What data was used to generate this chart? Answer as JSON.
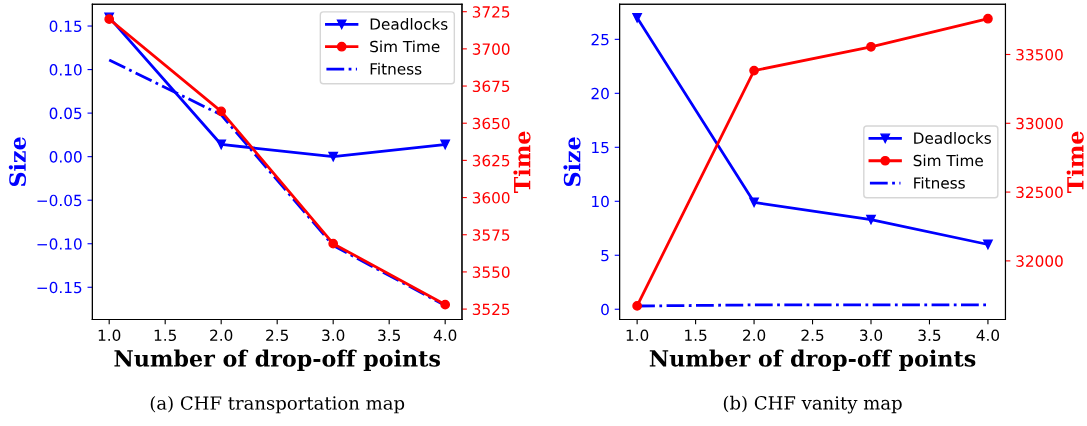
{
  "chart_data": [
    {
      "type": "line",
      "xlabel": "Number of drop-off points",
      "ylabel": "Size",
      "y2label": "Time",
      "x": [
        1,
        2,
        3,
        4
      ],
      "series": [
        {
          "name": "Deadlocks",
          "color": "#0000ff",
          "values": [
            0.16,
            0.014,
            0.0,
            0.014
          ],
          "marker": "triangle",
          "line_style": "solid"
        },
        {
          "name": "Sim Time",
          "color": "#ff0000",
          "values": [
            3720,
            3658,
            3569,
            3528
          ],
          "axis": "y2",
          "marker": "circle",
          "line_style": "solid"
        },
        {
          "name": "Fitness",
          "color": "#0000ff",
          "values": [
            0.111,
            0.048,
            -0.102,
            -0.171
          ],
          "marker": "none",
          "line_style": "dashdot"
        }
      ],
      "xlim": [
        0.85,
        4.15
      ],
      "xticks": [
        {
          "value": 1,
          "label": "1.0"
        },
        {
          "value": 1.5,
          "label": "1.5"
        },
        {
          "value": 2,
          "label": "2.0"
        },
        {
          "value": 2.5,
          "label": "2.5"
        },
        {
          "value": 3,
          "label": "3.0"
        },
        {
          "value": 3.5,
          "label": "3.5"
        },
        {
          "value": 4,
          "label": "4.0"
        }
      ],
      "ylim": [
        -0.187,
        0.175
      ],
      "yticks": [
        {
          "value": -0.15,
          "label": "−0.15"
        },
        {
          "value": -0.1,
          "label": "−0.10"
        },
        {
          "value": -0.05,
          "label": "−0.05"
        },
        {
          "value": 0,
          "label": "0.00"
        },
        {
          "value": 0.05,
          "label": "0.05"
        },
        {
          "value": 0.1,
          "label": "0.10"
        },
        {
          "value": 0.15,
          "label": "0.15"
        }
      ],
      "y2lim": [
        3518,
        3730
      ],
      "y2ticks": [
        3525,
        3550,
        3575,
        3600,
        3625,
        3650,
        3675,
        3700,
        3725
      ],
      "grid": false,
      "legend": "top right",
      "annotations": [
        "(a) CHF transportation map"
      ]
    },
    {
      "type": "line",
      "xlabel": "Number of drop-off points",
      "ylabel": "Size",
      "y2label": "Time",
      "x": [
        1,
        2,
        3,
        4
      ],
      "series": [
        {
          "name": "Deadlocks",
          "color": "#0000ff",
          "values": [
            27,
            9.9,
            8.3,
            6
          ],
          "marker": "triangle",
          "line_style": "solid"
        },
        {
          "name": "Sim Time",
          "color": "#ff0000",
          "values": [
            31673,
            33383,
            33556,
            33760
          ],
          "axis": "y2",
          "marker": "circle",
          "line_style": "solid"
        },
        {
          "name": "Fitness",
          "color": "#0000ff",
          "values": [
            0.3,
            0.4,
            0.4,
            0.4
          ],
          "marker": "none",
          "line_style": "dashdot"
        }
      ],
      "xlim": [
        0.85,
        4.15
      ],
      "xticks": [
        {
          "value": 1,
          "label": "1.0"
        },
        {
          "value": 1.5,
          "label": "1.5"
        },
        {
          "value": 2,
          "label": "2.0"
        },
        {
          "value": 2.5,
          "label": "2.5"
        },
        {
          "value": 3,
          "label": "3.0"
        },
        {
          "value": 3.5,
          "label": "3.5"
        },
        {
          "value": 4,
          "label": "4.0"
        }
      ],
      "ylim": [
        -0.95,
        28.25
      ],
      "yticks": [
        0,
        5,
        10,
        15,
        20,
        25
      ],
      "y2lim": [
        31574,
        33865
      ],
      "y2ticks": [
        32000,
        32500,
        33000,
        33500
      ],
      "grid": false,
      "legend": "right",
      "annotations": [
        "(b) CHF vanity map"
      ]
    }
  ]
}
